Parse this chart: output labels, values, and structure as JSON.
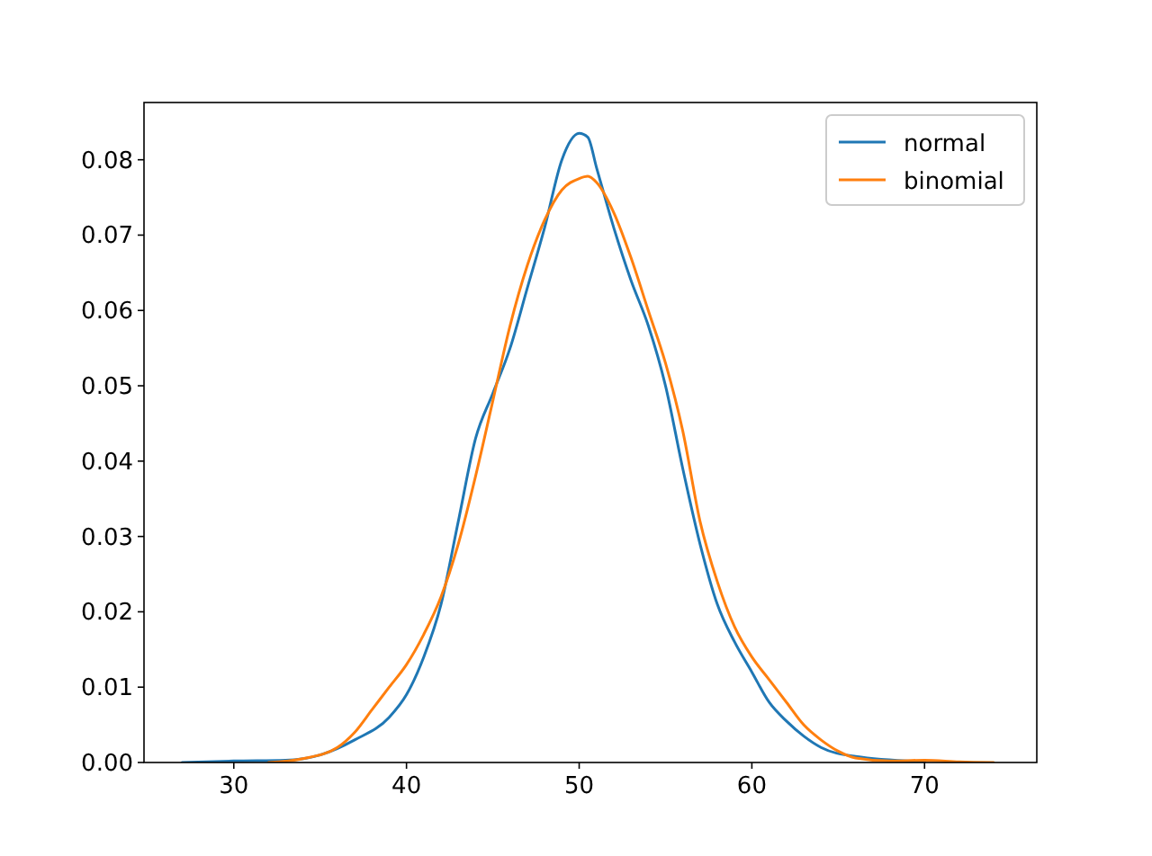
{
  "chart_data": {
    "type": "line",
    "xlim": [
      24.8,
      76.5
    ],
    "ylim": [
      0,
      0.0876
    ],
    "xticks": [
      30,
      40,
      50,
      60,
      70
    ],
    "yticks": [
      {
        "value": 0,
        "label": "0.00"
      },
      {
        "value": 0.01,
        "label": "0.01"
      },
      {
        "value": 0.02,
        "label": "0.02"
      },
      {
        "value": 0.03,
        "label": "0.03"
      },
      {
        "value": 0.04,
        "label": "0.04"
      },
      {
        "value": 0.05,
        "label": "0.05"
      },
      {
        "value": 0.06,
        "label": "0.06"
      },
      {
        "value": 0.07,
        "label": "0.07"
      },
      {
        "value": 0.08,
        "label": "0.08"
      }
    ],
    "legend": "top right",
    "grid": false,
    "marker": "none",
    "line_style": "solid",
    "series": [
      {
        "name": "normal",
        "color": "#1f77b4",
        "x": [
          27,
          30,
          33,
          35,
          37,
          39,
          40,
          41,
          42,
          43,
          44,
          45,
          46,
          47,
          48,
          49,
          50,
          50.5,
          51,
          52,
          53,
          54,
          55,
          56,
          57,
          58,
          59,
          60,
          61,
          62,
          63,
          64,
          66,
          68,
          70
        ],
        "values": [
          0,
          0.0002,
          0.0003,
          0.001,
          0.003,
          0.006,
          0.009,
          0.014,
          0.021,
          0.032,
          0.043,
          0.049,
          0.055,
          0.063,
          0.071,
          0.08,
          0.0835,
          0.083,
          0.079,
          0.071,
          0.064,
          0.058,
          0.05,
          0.039,
          0.029,
          0.021,
          0.016,
          0.012,
          0.008,
          0.0055,
          0.0035,
          0.002,
          0.0008,
          null,
          0.0001
        ]
      },
      {
        "name": "binomial",
        "color": "#ff7f0e",
        "x": [
          32,
          34,
          36,
          37,
          38,
          39,
          40,
          41,
          42,
          43,
          44,
          45,
          46,
          47,
          48,
          49,
          50,
          50.5,
          51,
          52,
          53,
          54,
          55,
          56,
          57,
          58,
          59,
          60,
          61,
          62,
          63,
          64,
          65,
          66,
          68,
          70,
          72,
          74
        ],
        "values": [
          0,
          0.0005,
          0.002,
          0.004,
          0.007,
          0.01,
          0.013,
          0.017,
          0.022,
          0.029,
          0.038,
          0.048,
          0.058,
          0.066,
          0.072,
          0.076,
          0.0775,
          0.0778,
          0.077,
          0.073,
          0.067,
          0.06,
          0.053,
          0.044,
          0.032,
          0.024,
          0.018,
          0.014,
          0.011,
          0.008,
          0.005,
          0.003,
          0.0015,
          0.0006,
          0.0002,
          0.0003,
          0.0001,
          0
        ]
      }
    ]
  }
}
